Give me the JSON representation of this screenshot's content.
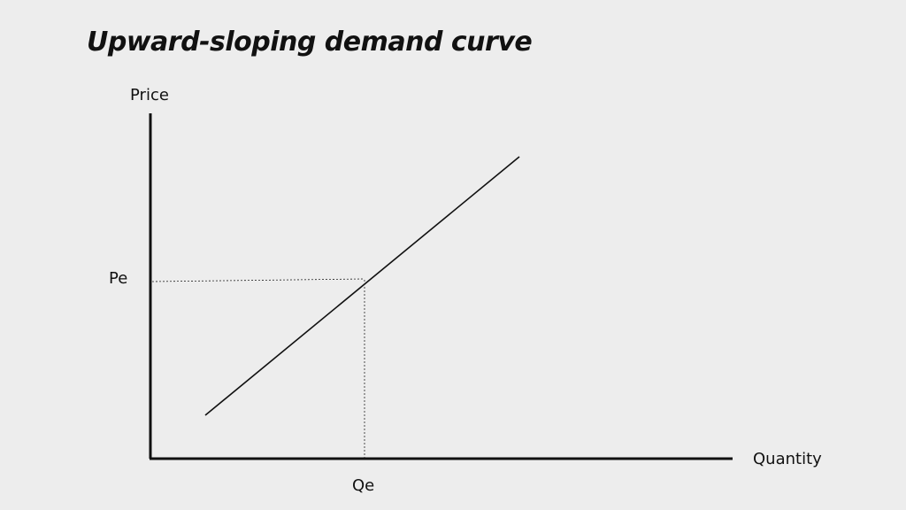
{
  "title": "Upward-sloping demand curve",
  "axes": {
    "y_label": "Price",
    "x_label": "Quantity"
  },
  "markers": {
    "price_equilibrium": "Pe",
    "quantity_equilibrium": "Qe"
  },
  "colors": {
    "background": "#ededed",
    "ink": "#111111"
  }
}
